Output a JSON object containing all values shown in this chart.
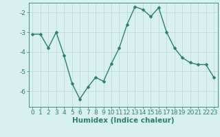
{
  "x": [
    0,
    1,
    2,
    3,
    4,
    5,
    6,
    7,
    8,
    9,
    10,
    11,
    12,
    13,
    14,
    15,
    16,
    17,
    18,
    19,
    20,
    21,
    22,
    23
  ],
  "y": [
    -3.1,
    -3.1,
    -3.8,
    -3.0,
    -4.2,
    -5.6,
    -6.4,
    -5.8,
    -5.3,
    -5.5,
    -4.6,
    -3.8,
    -2.6,
    -1.7,
    -1.85,
    -2.2,
    -1.75,
    -3.0,
    -3.8,
    -4.3,
    -4.55,
    -4.65,
    -4.65,
    -5.3
  ],
  "line_color": "#2d7d6e",
  "marker": "D",
  "marker_size": 2.5,
  "line_width": 1.0,
  "bg_color": "#d8f0f0",
  "grid_color": "#b8d8d8",
  "xlabel": "Humidex (Indice chaleur)",
  "xlabel_fontsize": 7.5,
  "tick_color": "#2d7d6e",
  "tick_fontsize": 6.5,
  "xlim": [
    -0.5,
    23.5
  ],
  "ylim": [
    -6.8,
    -1.5
  ],
  "yticks": [
    -6,
    -5,
    -4,
    -3,
    -2
  ],
  "xticks": [
    0,
    1,
    2,
    3,
    4,
    5,
    6,
    7,
    8,
    9,
    10,
    11,
    12,
    13,
    14,
    15,
    16,
    17,
    18,
    19,
    20,
    21,
    22,
    23
  ]
}
